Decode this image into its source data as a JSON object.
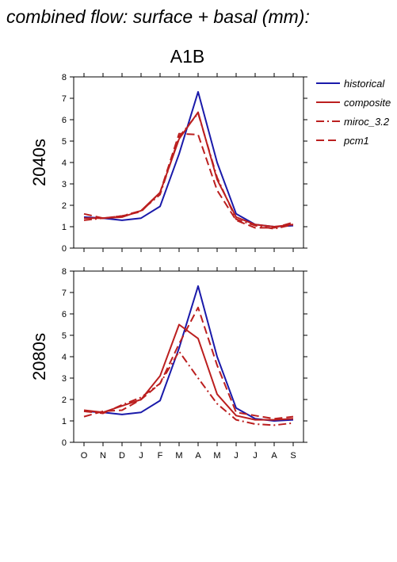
{
  "title": "combined flow: surface + basal (mm):",
  "scenario": "A1B",
  "colors": {
    "historical": "#1a1aaa",
    "model": "#bb1f1f"
  },
  "chart_data": [
    {
      "type": "line",
      "panel": "2040s",
      "categories": [
        "O",
        "N",
        "D",
        "J",
        "F",
        "M",
        "A",
        "M",
        "J",
        "J",
        "A",
        "S"
      ],
      "yticks": [
        0,
        1,
        2,
        3,
        4,
        5,
        6,
        7,
        8
      ],
      "ylim": [
        0,
        8
      ],
      "legend": "top-right",
      "series": [
        {
          "name": "historical",
          "color": "#1a1aaa",
          "dash": "",
          "values": [
            1.45,
            1.4,
            1.3,
            1.4,
            1.95,
            4.4,
            7.3,
            4.0,
            1.6,
            1.1,
            1.0,
            1.05
          ]
        },
        {
          "name": "composite",
          "color": "#bb1f1f",
          "dash": "",
          "values": [
            1.4,
            1.4,
            1.45,
            1.75,
            2.6,
            5.1,
            6.35,
            3.2,
            1.45,
            1.1,
            1.0,
            1.1
          ]
        },
        {
          "name": "miroc_3.2",
          "color": "#bb1f1f",
          "dash": "10,4,2,4",
          "values": [
            1.3,
            1.4,
            1.5,
            1.75,
            2.5,
            5.2,
            6.3,
            3.3,
            1.35,
            1.05,
            0.9,
            1.1
          ]
        },
        {
          "name": "pcm1",
          "color": "#bb1f1f",
          "dash": "10,5",
          "values": [
            1.6,
            1.4,
            1.5,
            1.7,
            2.6,
            5.35,
            5.3,
            2.7,
            1.3,
            0.95,
            0.95,
            1.2
          ]
        }
      ]
    },
    {
      "type": "line",
      "panel": "2080s",
      "categories": [
        "O",
        "N",
        "D",
        "J",
        "F",
        "M",
        "A",
        "M",
        "J",
        "J",
        "A",
        "S"
      ],
      "yticks": [
        0,
        1,
        2,
        3,
        4,
        5,
        6,
        7,
        8
      ],
      "ylim": [
        0,
        8
      ],
      "series": [
        {
          "name": "historical",
          "color": "#1a1aaa",
          "dash": "",
          "values": [
            1.45,
            1.4,
            1.3,
            1.4,
            1.95,
            4.4,
            7.3,
            4.0,
            1.6,
            1.1,
            1.0,
            1.05
          ]
        },
        {
          "name": "composite",
          "color": "#bb1f1f",
          "dash": "",
          "values": [
            1.5,
            1.4,
            1.7,
            2.0,
            3.1,
            5.5,
            4.85,
            2.25,
            1.25,
            1.05,
            1.05,
            1.1
          ]
        },
        {
          "name": "miroc_3.2",
          "color": "#bb1f1f",
          "dash": "10,4,2,4",
          "values": [
            1.45,
            1.35,
            1.75,
            2.1,
            2.75,
            4.25,
            3.0,
            1.8,
            1.05,
            0.85,
            0.8,
            0.9
          ]
        },
        {
          "name": "pcm1",
          "color": "#bb1f1f",
          "dash": "10,5",
          "values": [
            1.2,
            1.45,
            1.5,
            2.0,
            2.75,
            4.6,
            6.3,
            3.6,
            1.4,
            1.25,
            1.1,
            1.2
          ]
        }
      ]
    }
  ]
}
